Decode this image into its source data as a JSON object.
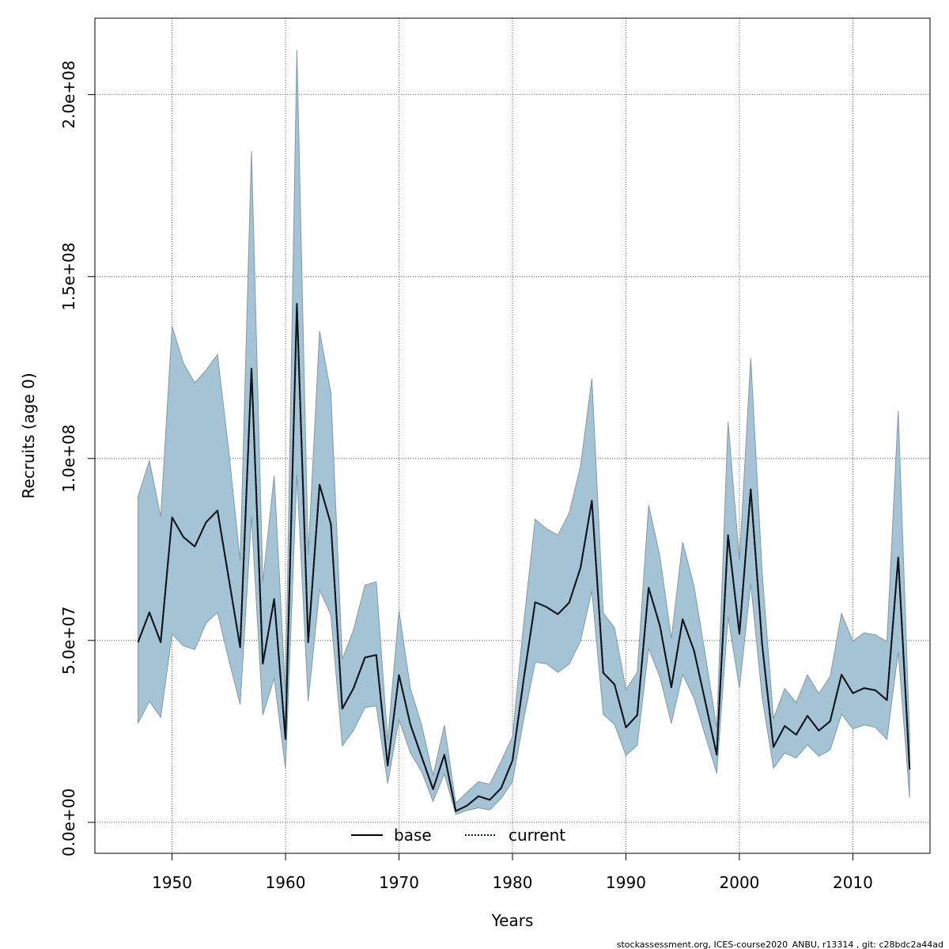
{
  "footer": "stockassessment.org, ICES-course2020_ANBU, r13314 , git: c28bdc2a44ad",
  "colors": {
    "band_fill": "#a4c3d4",
    "band_stroke": "#7f9aa8",
    "current_line": "#0b2233",
    "base_line": "#000000",
    "grid": "#555555"
  },
  "chart_data": {
    "type": "area",
    "xlabel": "Years",
    "ylabel": "Recruits (age 0)",
    "xlim": [
      1943.2,
      2016.8
    ],
    "ylim": [
      -8500000,
      221000000
    ],
    "grid": true,
    "legend_position": "bottom-center",
    "x_ticks": [
      1950,
      1960,
      1970,
      1980,
      1990,
      2000,
      2010
    ],
    "x_tick_labels": [
      "1950",
      "1960",
      "1970",
      "1980",
      "1990",
      "2000",
      "2010"
    ],
    "y_ticks": [
      0,
      50000000,
      100000000,
      150000000,
      200000000
    ],
    "y_tick_labels": [
      "0.0e+00",
      "5.0e+07",
      "1.0e+08",
      "1.5e+08",
      "2.0e+08"
    ],
    "x": [
      1947,
      1948,
      1949,
      1950,
      1951,
      1952,
      1953,
      1954,
      1955,
      1956,
      1957,
      1958,
      1959,
      1960,
      1961,
      1962,
      1963,
      1964,
      1965,
      1966,
      1967,
      1968,
      1969,
      1970,
      1971,
      1972,
      1973,
      1974,
      1975,
      1976,
      1977,
      1978,
      1979,
      1980,
      1981,
      1982,
      1983,
      1984,
      1985,
      1986,
      1987,
      1988,
      1989,
      1990,
      1991,
      1992,
      1993,
      1994,
      1995,
      1996,
      1997,
      1998,
      1999,
      2000,
      2001,
      2002,
      2003,
      2004,
      2005,
      2006,
      2007,
      2008,
      2009,
      2010,
      2011,
      2012,
      2013,
      2014,
      2015
    ],
    "series": [
      {
        "name": "base",
        "style": "solid",
        "values": [
          49500000,
          57700000,
          49500000,
          83800000,
          78400000,
          75800000,
          82500000,
          85700000,
          67000000,
          48100000,
          124700000,
          43600000,
          61400000,
          22900000,
          142500000,
          49500000,
          92800000,
          82000000,
          31200000,
          36900000,
          45300000,
          46000000,
          15600000,
          40500000,
          26900000,
          18000000,
          9100000,
          18600000,
          3100000,
          4600000,
          7200000,
          6200000,
          9400000,
          17000000,
          39500000,
          60500000,
          59200000,
          57200000,
          60400000,
          70000000,
          88400000,
          41100000,
          37900000,
          26100000,
          29500000,
          64500000,
          54000000,
          37100000,
          55800000,
          47200000,
          33100000,
          18600000,
          78900000,
          51800000,
          91500000,
          48900000,
          20700000,
          26500000,
          24100000,
          29300000,
          25200000,
          27800000,
          40600000,
          35500000,
          36900000,
          36300000,
          33600000,
          72800000,
          14600000
        ]
      },
      {
        "name": "current",
        "style": "dotted",
        "values": [
          49500000,
          57700000,
          49500000,
          83800000,
          78400000,
          75800000,
          82500000,
          85700000,
          67000000,
          48100000,
          124700000,
          43600000,
          61400000,
          22900000,
          142500000,
          49500000,
          92800000,
          82000000,
          31200000,
          36900000,
          45300000,
          46000000,
          15600000,
          40500000,
          26900000,
          18000000,
          9100000,
          18600000,
          3100000,
          4600000,
          7200000,
          6200000,
          9400000,
          17000000,
          39500000,
          60500000,
          59200000,
          57200000,
          60400000,
          70000000,
          88400000,
          41100000,
          37900000,
          26100000,
          29500000,
          64500000,
          54000000,
          37100000,
          55800000,
          47200000,
          33100000,
          18600000,
          78900000,
          51800000,
          91500000,
          48900000,
          20700000,
          26500000,
          24100000,
          29300000,
          25200000,
          27800000,
          40600000,
          35500000,
          36900000,
          36300000,
          33600000,
          72800000,
          14600000
        ]
      }
    ],
    "band_upper": [
      89600000,
      99400000,
      84000000,
      136300000,
      126200000,
      120800000,
      124300000,
      128600000,
      102000000,
      71900000,
      184500000,
      66000000,
      95300000,
      35300000,
      212200000,
      73500000,
      135000000,
      118000000,
      44800000,
      53000000,
      65200000,
      66100000,
      22500000,
      58200000,
      36900000,
      26700000,
      12900000,
      26700000,
      5300000,
      8300000,
      11200000,
      10500000,
      16800000,
      23600000,
      54900000,
      83300000,
      80700000,
      78900000,
      85000000,
      97900000,
      121900000,
      57500000,
      53500000,
      36400000,
      41300000,
      87200000,
      73000000,
      50500000,
      77000000,
      64900000,
      46000000,
      26000000,
      110100000,
      72000000,
      127600000,
      68800000,
      28500000,
      36800000,
      32900000,
      40500000,
      35400000,
      40100000,
      57400000,
      49800000,
      52100000,
      51500000,
      49700000,
      113100000,
      24200000
    ],
    "band_lower": [
      27200000,
      33300000,
      28900000,
      51800000,
      48500000,
      47500000,
      54800000,
      57700000,
      44700000,
      32400000,
      84000000,
      29500000,
      39600000,
      14700000,
      95600000,
      33300000,
      63900000,
      57000000,
      21000000,
      25300000,
      31600000,
      32000000,
      10700000,
      28200000,
      19100000,
      13900000,
      5800000,
      13300000,
      2200000,
      3300000,
      4000000,
      3400000,
      6600000,
      11200000,
      28400000,
      44000000,
      43600000,
      41200000,
      43500000,
      49900000,
      63600000,
      29700000,
      26900000,
      18400000,
      21200000,
      47800000,
      39900000,
      27200000,
      40700000,
      34100000,
      23800000,
      13500000,
      56500000,
      36900000,
      65600000,
      34300000,
      14900000,
      19100000,
      17700000,
      21300000,
      18200000,
      19900000,
      29700000,
      25700000,
      26800000,
      26100000,
      22800000,
      46900000,
      6800000
    ]
  }
}
